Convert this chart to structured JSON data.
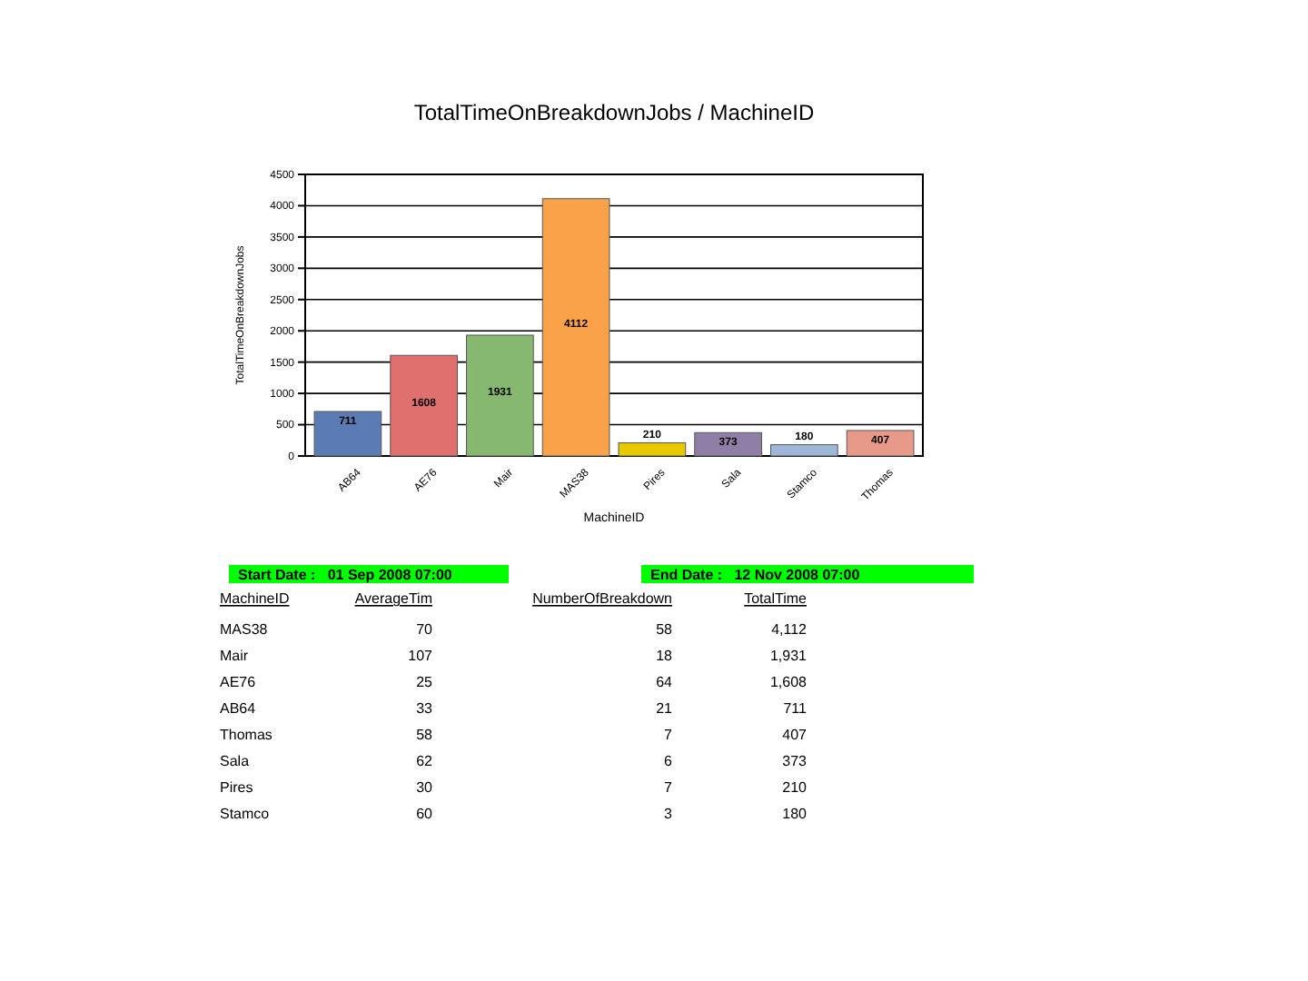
{
  "chart_data": [
    {
      "type": "bar",
      "title": "TotalTimeOnBreakdownJobs / MachineID",
      "xlabel": "MachineID",
      "ylabel": "TotalTimeOnBreakdownJobs",
      "categories": [
        "AB64",
        "AE76",
        "Mair",
        "MAS38",
        "Pires",
        "Sala",
        "Stamco",
        "Thomas"
      ],
      "values": [
        711,
        1608,
        1931,
        4112,
        210,
        373,
        180,
        407
      ],
      "colors": [
        "#5b7bb4",
        "#e0706e",
        "#86b870",
        "#f9a24a",
        "#e8c800",
        "#8f7fa6",
        "#9eb6d8",
        "#e89a8a"
      ],
      "ylim": [
        0,
        4500
      ],
      "yticks": [
        0,
        500,
        1000,
        1500,
        2000,
        2500,
        3000,
        3500,
        4000,
        4500
      ],
      "grid": "y",
      "data_labels": true
    },
    {
      "type": "other",
      "xlabel": "MachineID",
      "categories": [
        "MAS38",
        "Mair",
        "AE76",
        "AB64",
        "Thomas",
        "Sala",
        "Pires",
        "Stamco"
      ],
      "series": [
        {
          "name": "AverageTim",
          "values": [
            70,
            107,
            25,
            33,
            58,
            62,
            30,
            60
          ]
        },
        {
          "name": "NumberOfBreakdown",
          "values": [
            58,
            18,
            64,
            21,
            7,
            6,
            7,
            3
          ]
        },
        {
          "name": "TotalTime",
          "values": [
            4112,
            1931,
            1608,
            711,
            407,
            373,
            210,
            180
          ],
          "value_labels": [
            "4,112",
            "1,931",
            "1,608",
            "711",
            "407",
            "373",
            "210",
            "180"
          ]
        }
      ],
      "annotations": [
        "Start Date :   01 Sep 2008 07:00",
        "End Date :   12 Nov 2008 07:00"
      ],
      "data_labels": true
    }
  ]
}
